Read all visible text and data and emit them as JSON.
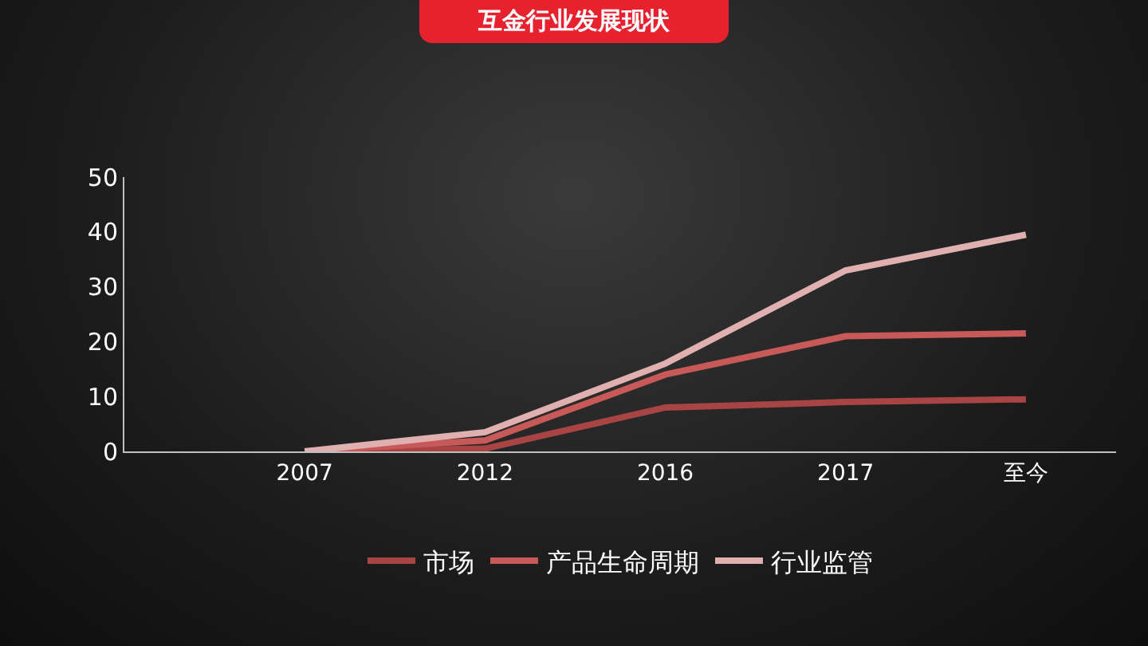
{
  "chart_data": {
    "type": "line",
    "title": "互金行业发展现状",
    "categories": [
      "2007",
      "2012",
      "2016",
      "2017",
      "至今"
    ],
    "series": [
      {
        "name": "市场",
        "color": "#a84444",
        "values": [
          0,
          0.5,
          8,
          9,
          9.5
        ]
      },
      {
        "name": "产品生命周期",
        "color": "#c75a58",
        "values": [
          0,
          2,
          14,
          21,
          21.5
        ]
      },
      {
        "name": "行业监管",
        "color": "#e0b0b0",
        "values": [
          0,
          3.5,
          16,
          33,
          39.5
        ]
      }
    ],
    "ylim": [
      0,
      50
    ],
    "yticks": [
      0,
      10,
      20,
      30,
      40,
      50
    ],
    "grid": false,
    "legend": "bottom",
    "marker": "none",
    "line_style": "solid"
  }
}
